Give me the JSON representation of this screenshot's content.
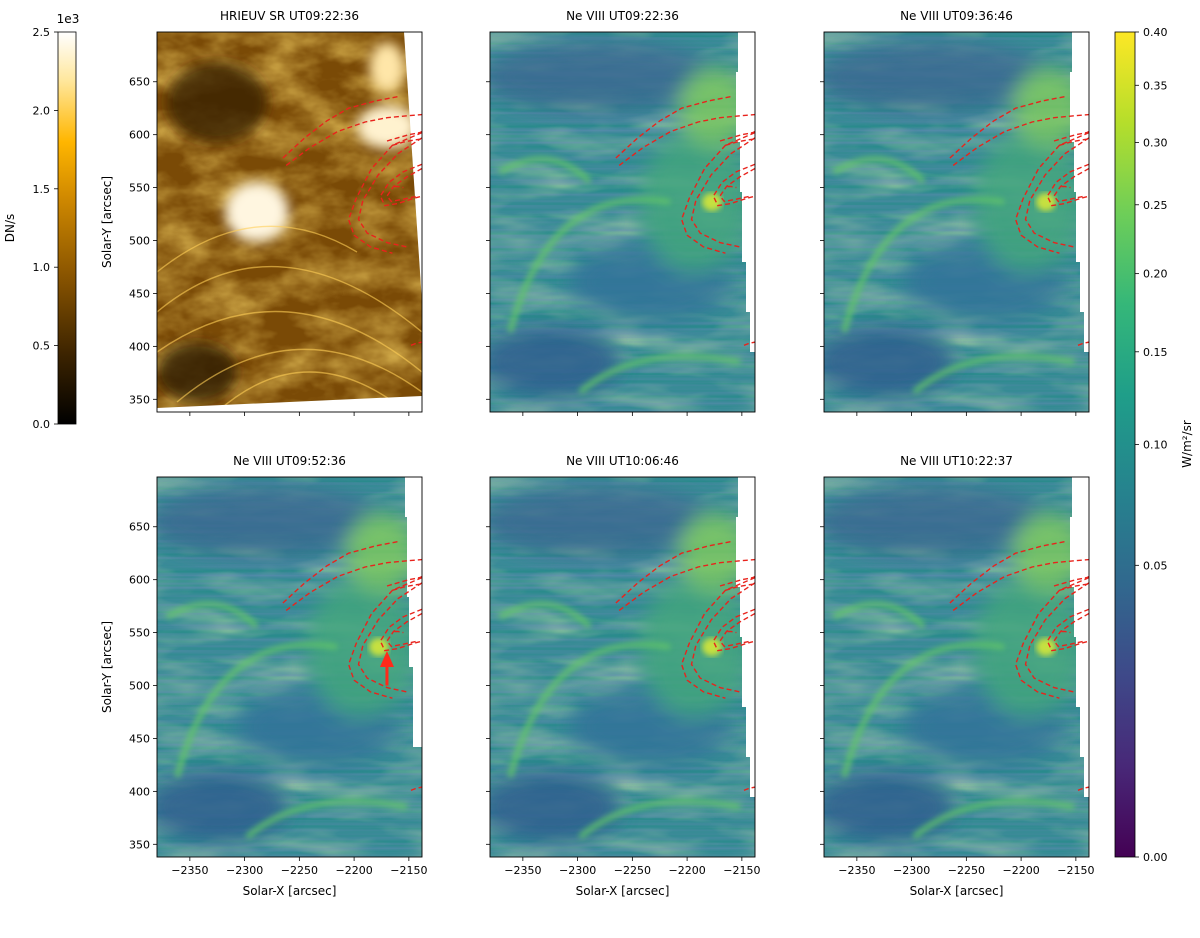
{
  "panels": [
    {
      "title": "HRIEUV SR UT09:22:36",
      "cmap": "afmhot"
    },
    {
      "title": "Ne VIII UT09:22:36",
      "cmap": "viridis"
    },
    {
      "title": "Ne VIII UT09:36:46",
      "cmap": "viridis"
    },
    {
      "title": "Ne VIII UT09:52:36",
      "cmap": "viridis"
    },
    {
      "title": "Ne VIII UT10:06:46",
      "cmap": "viridis"
    },
    {
      "title": "Ne VIII UT10:22:37",
      "cmap": "viridis"
    }
  ],
  "x_axis": {
    "label": "Solar-X [arcsec]",
    "range": [
      -2380,
      -2138
    ],
    "ticks": [
      -2350,
      -2300,
      -2250,
      -2200,
      -2150
    ],
    "tick_labels": [
      "−2350",
      "−2300",
      "−2250",
      "−2200",
      "−2150"
    ]
  },
  "y_axis": {
    "label": "Solar-Y [arcsec]",
    "range": [
      338,
      697
    ],
    "ticks": [
      350,
      400,
      450,
      500,
      550,
      600,
      650
    ],
    "tick_labels": [
      "350",
      "400",
      "450",
      "500",
      "550",
      "600",
      "650"
    ]
  },
  "colorbar_hri": {
    "label": "DN/s",
    "offset_text": "1e3",
    "range": [
      0,
      2500
    ],
    "ticks": [
      0,
      500,
      1000,
      1500,
      2000,
      2500
    ],
    "tick_labels": [
      "0.0",
      "0.5",
      "1.0",
      "1.5",
      "2.0",
      "2.5"
    ],
    "colors": [
      "#000000",
      "#3d2400",
      "#8a5500",
      "#d18a00",
      "#ffb600",
      "#ffe8a0",
      "#ffffff"
    ]
  },
  "colorbar_ne": {
    "label": "W/m²/sr",
    "scale": "sqrt",
    "range": [
      0,
      0.4
    ],
    "ticks": [
      0,
      0.05,
      0.1,
      0.15,
      0.2,
      0.25,
      0.3,
      0.35,
      0.4
    ],
    "tick_labels": [
      "0.00",
      "0.05",
      "0.10",
      "0.15",
      "0.20",
      "0.25",
      "0.30",
      "0.35",
      "0.40"
    ],
    "colors": [
      "#440154",
      "#482878",
      "#3e4989",
      "#31688e",
      "#26828e",
      "#1f9e89",
      "#35b779",
      "#6ece58",
      "#b5de2b",
      "#fde725"
    ]
  },
  "chart_data": {
    "type": "heatmap",
    "overlay": "red dashed magnetic field line traces (identical in all six panels)",
    "arrow_marker": {
      "panel": 3,
      "x": -2170,
      "y_from": 500,
      "y_to": 525,
      "color": "#ff2a1a"
    },
    "field_lines": [
      {
        "x": [
          -2265,
          -2245,
          -2225,
          -2205,
          -2180,
          -2160
        ],
        "y": [
          578,
          597,
          613,
          625,
          632,
          636
        ]
      },
      {
        "x": [
          -2262,
          -2240,
          -2215,
          -2190,
          -2170,
          -2150,
          -2138
        ],
        "y": [
          571,
          588,
          603,
          612,
          616,
          618,
          619
        ]
      },
      {
        "x": [
          -2170,
          -2160,
          -2150,
          -2140,
          -2138
        ],
        "y": [
          594,
          597,
          600,
          602,
          603
        ]
      },
      {
        "x": [
          -2165,
          -2155,
          -2145,
          -2138
        ],
        "y": [
          590,
          593,
          595,
          596
        ]
      },
      {
        "x": [
          -2138,
          -2165,
          -2184,
          -2198,
          -2205,
          -2200,
          -2185,
          -2165
        ],
        "y": [
          602,
          590,
          568,
          540,
          520,
          505,
          494,
          488
        ]
      },
      {
        "x": [
          -2138,
          -2160,
          -2178,
          -2192,
          -2196,
          -2188,
          -2170,
          -2152
        ],
        "y": [
          597,
          582,
          562,
          538,
          520,
          507,
          498,
          494
        ]
      },
      {
        "x": [
          -2138,
          -2155,
          -2168,
          -2176,
          -2172,
          -2160,
          -2145,
          -2138
        ],
        "y": [
          572,
          565,
          555,
          542,
          533,
          535,
          540,
          542
        ]
      },
      {
        "x": [
          -2138,
          -2152,
          -2164,
          -2170,
          -2166,
          -2155,
          -2142
        ],
        "y": [
          568,
          560,
          551,
          542,
          537,
          539,
          542
        ]
      },
      {
        "x": [
          -2163,
          -2160,
          -2155
        ],
        "y": [
          551,
          551,
          550
        ]
      },
      {
        "x": [
          -2148,
          -2143,
          -2138
        ],
        "y": [
          401,
          403,
          404
        ]
      }
    ]
  }
}
